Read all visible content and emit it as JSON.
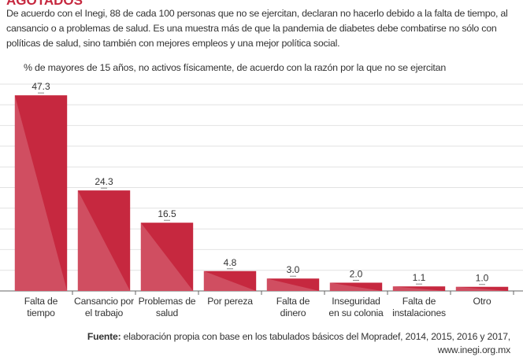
{
  "chart_data": {
    "type": "bar",
    "title": "AGOTADOS",
    "description": "De acuerdo con el Inegi, 88 de cada 100 personas que no se ejercitan, declaran no hacerlo debido a la falta de tiempo, al cansancio o a problemas de salud. Es una muestra más de que la pandemia de diabetes debe combatirse no sólo con políticas de salud, sino también con mejores empleos y una mejor política social.",
    "subtitle": "% de mayores de 15 años, no activos físicamente, de acuerdo con la razón por la que no se ejercitan",
    "categories": [
      "Falta de tiempo",
      "Cansancio por el trabajo",
      "Problemas de salud",
      "Por pereza",
      "Falta de dinero",
      "Inseguridad en su colonia",
      "Falta de instalaciones",
      "Otro"
    ],
    "values": [
      47.3,
      24.3,
      16.5,
      4.8,
      3.0,
      2.0,
      1.1,
      1.0
    ],
    "value_labels": [
      "47.3",
      "24.3",
      "16.5",
      "4.8",
      "3.0",
      "2.0",
      "1.1",
      "1.0"
    ],
    "color": "#c6283f",
    "ylim": [
      0,
      50
    ],
    "yticks": [
      0,
      5,
      10,
      15,
      20,
      25,
      30,
      35,
      40,
      45,
      50
    ],
    "grid": true,
    "source_label": "Fuente:",
    "source": "elaboración propia con base en los tabulados básicos del Mopradef, 2014, 2015, 2016 y 2017,",
    "source_url": "www.inegi.org.mx"
  }
}
